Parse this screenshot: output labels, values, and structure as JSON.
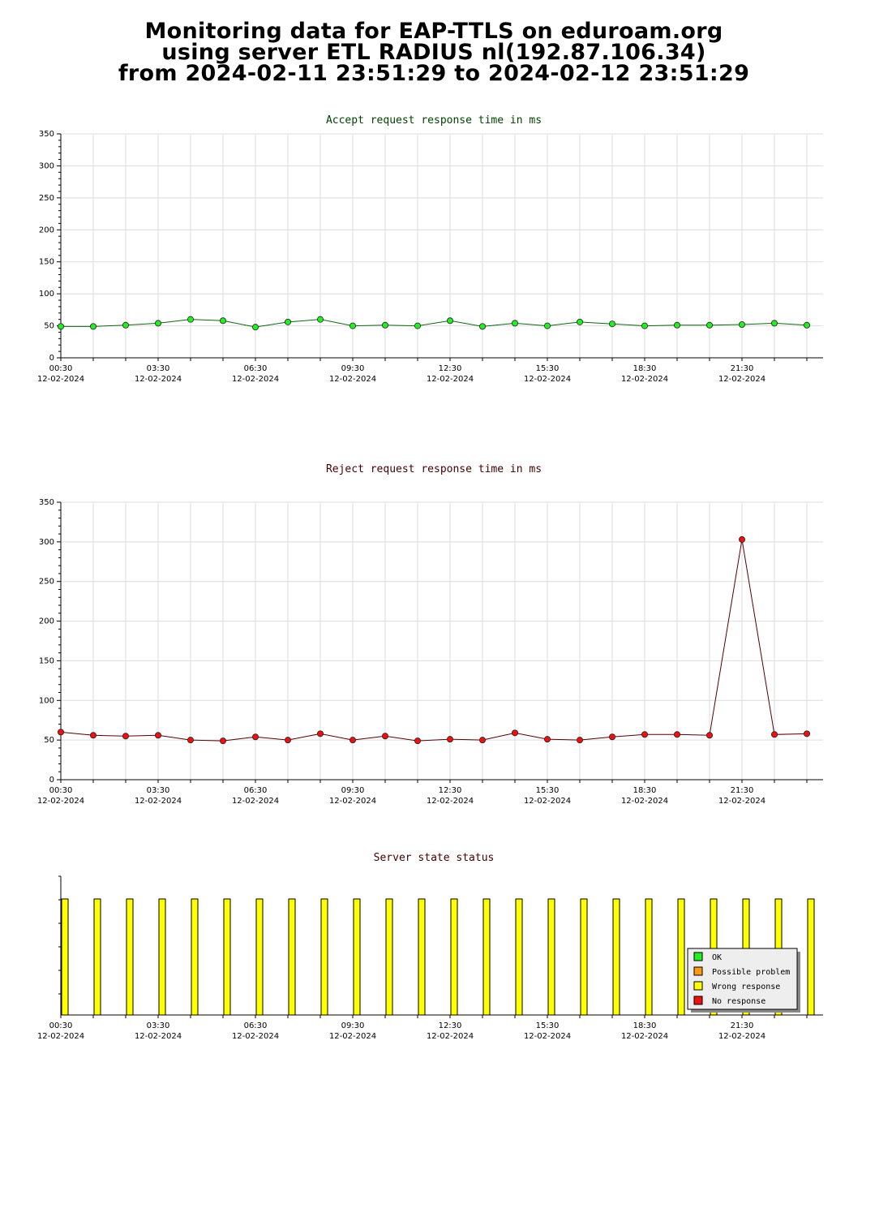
{
  "header": {
    "line1": "Monitoring data for EAP-TTLS on eduroam.org",
    "line2": "using server ETL RADIUS nl(192.87.106.34)",
    "line3": "from 2024-02-11 23:51:29 to 2024-02-12 23:51:29"
  },
  "x_tick_labels": [
    {
      "time": "00:30",
      "date": "12-02-2024"
    },
    {
      "time": "03:30",
      "date": "12-02-2024"
    },
    {
      "time": "06:30",
      "date": "12-02-2024"
    },
    {
      "time": "09:30",
      "date": "12-02-2024"
    },
    {
      "time": "12:30",
      "date": "12-02-2024"
    },
    {
      "time": "15:30",
      "date": "12-02-2024"
    },
    {
      "time": "18:30",
      "date": "12-02-2024"
    },
    {
      "time": "21:30",
      "date": "12-02-2024"
    }
  ],
  "chart_data": [
    {
      "type": "line",
      "title": "Accept request response time in ms",
      "title_color": "#004400",
      "ylim": [
        0,
        350
      ],
      "yticks": [
        0,
        50,
        100,
        150,
        200,
        250,
        300,
        350
      ],
      "x_hours": [
        0.5,
        1.5,
        2.5,
        3.5,
        4.5,
        5.5,
        6.5,
        7.5,
        8.5,
        9.5,
        10.5,
        11.5,
        12.5,
        13.5,
        14.5,
        15.5,
        16.5,
        17.5,
        18.5,
        19.5,
        20.5,
        21.5,
        22.5,
        23.5
      ],
      "values": [
        49,
        49,
        51,
        54,
        60,
        58,
        48,
        56,
        60,
        50,
        51,
        50,
        58,
        49,
        54,
        50,
        56,
        53,
        50,
        51,
        51,
        52,
        54,
        51
      ],
      "marker_color": "#22ee22",
      "line_color": "#116611",
      "grid": true
    },
    {
      "type": "line",
      "title": "Reject request response time in ms",
      "title_color": "#440000",
      "ylim": [
        0,
        350
      ],
      "yticks": [
        0,
        50,
        100,
        150,
        200,
        250,
        300,
        350
      ],
      "x_hours": [
        0.5,
        1.5,
        2.5,
        3.5,
        4.5,
        5.5,
        6.5,
        7.5,
        8.5,
        9.5,
        10.5,
        11.5,
        12.5,
        13.5,
        14.5,
        15.5,
        16.5,
        17.5,
        18.5,
        19.5,
        20.5,
        21.5,
        22.5,
        23.5
      ],
      "values": [
        60,
        56,
        55,
        56,
        50,
        49,
        54,
        50,
        58,
        50,
        55,
        49,
        51,
        50,
        59,
        51,
        50,
        54,
        57,
        57,
        56,
        303,
        57,
        58
      ],
      "marker_color": "#ee1111",
      "line_color": "#550000",
      "grid": true
    },
    {
      "type": "bar",
      "title": "Server state status",
      "title_color": "#440000",
      "x_hours": [
        0.5,
        1.5,
        2.5,
        3.5,
        4.5,
        5.5,
        6.5,
        7.5,
        8.5,
        9.5,
        10.5,
        11.5,
        12.5,
        13.5,
        14.5,
        15.5,
        16.5,
        17.5,
        18.5,
        19.5,
        20.5,
        21.5,
        22.5,
        23.5
      ],
      "states": [
        "Wrong response",
        "Wrong response",
        "Wrong response",
        "Wrong response",
        "Wrong response",
        "Wrong response",
        "Wrong response",
        "Wrong response",
        "Wrong response",
        "Wrong response",
        "Wrong response",
        "Wrong response",
        "Wrong response",
        "Wrong response",
        "Wrong response",
        "Wrong response",
        "Wrong response",
        "Wrong response",
        "Wrong response",
        "Wrong response",
        "Wrong response",
        "Wrong response",
        "Wrong response",
        "Wrong response"
      ],
      "legend": [
        {
          "label": "OK",
          "color": "#22ee22"
        },
        {
          "label": "Possible problem",
          "color": "#ff9911"
        },
        {
          "label": "Wrong response",
          "color": "#ffff00"
        },
        {
          "label": "No response",
          "color": "#ee1111"
        }
      ],
      "legend_position": "bottom-right"
    }
  ]
}
